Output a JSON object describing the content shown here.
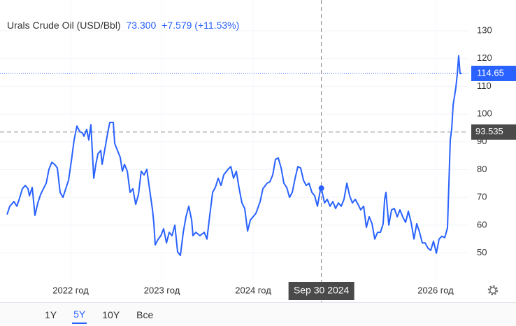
{
  "chart_data": {
    "type": "line",
    "header": {
      "name": "Urals Crude Oil (USD/Bbl)",
      "price": "73.300",
      "change": "+7.579 (+11.53%)"
    },
    "x": [
      2021.303,
      2021.333,
      2021.379,
      2021.41,
      2021.441,
      2021.471,
      2021.502,
      2021.533,
      2021.548,
      2021.579,
      2021.609,
      2021.64,
      2021.67,
      2021.701,
      2021.732,
      2021.762,
      2021.793,
      2021.824,
      2021.854,
      2021.885,
      2021.916,
      2021.946,
      2021.977,
      2022.008,
      2022.038,
      2022.069,
      2022.1,
      2022.13,
      2022.146,
      2022.176,
      2022.199,
      2022.222,
      2022.253,
      2022.276,
      2022.299,
      2022.33,
      2022.345,
      2022.375,
      2022.406,
      2022.429,
      2022.467,
      2022.483,
      2022.513,
      2022.544,
      2022.567,
      2022.59,
      2022.621,
      2022.651,
      2022.682,
      2022.713,
      2022.743,
      2022.774,
      2022.805,
      2022.835,
      2022.866,
      2022.897,
      2022.912,
      2022.927,
      2022.958,
      2022.989,
      2023.019,
      2023.05,
      2023.08,
      2023.111,
      2023.142,
      2023.172,
      2023.203,
      2023.234,
      2023.264,
      2023.295,
      2023.326,
      2023.341,
      2023.372,
      2023.418,
      2023.464,
      2023.494,
      2023.525,
      2023.556,
      2023.586,
      2023.617,
      2023.648,
      2023.678,
      2023.724,
      2023.755,
      2023.785,
      2023.816,
      2023.847,
      2023.877,
      2023.908,
      2023.939,
      2023.969,
      2024.0,
      2024.031,
      2024.077,
      2024.107,
      2024.153,
      2024.184,
      2024.215,
      2024.245,
      2024.276,
      2024.307,
      2024.337,
      2024.368,
      2024.399,
      2024.429,
      2024.46,
      2024.49,
      2024.521,
      2024.552,
      2024.582,
      2024.613,
      2024.644,
      2024.674,
      2024.705,
      2024.736,
      2024.748,
      2024.782,
      2024.812,
      2024.843,
      2024.874,
      2024.904,
      2024.935,
      2024.966,
      2024.996,
      2025.027,
      2025.058,
      2025.088,
      2025.119,
      2025.149,
      2025.18,
      2025.211,
      2025.241,
      2025.272,
      2025.303,
      2025.333,
      2025.364,
      2025.395,
      2025.425,
      2025.441,
      2025.456,
      2025.487,
      2025.517,
      2025.548,
      2025.579,
      2025.609,
      2025.64,
      2025.671,
      2025.701,
      2025.732,
      2025.763,
      2025.793,
      2025.824,
      2025.854,
      2025.885,
      2025.916,
      2025.946,
      2025.977,
      2026.008,
      2026.038,
      2026.069,
      2026.1,
      2026.13,
      2026.146,
      2026.161,
      2026.176,
      2026.192,
      2026.207,
      2026.222,
      2026.238,
      2026.253,
      2026.268,
      2026.284
    ],
    "values": [
      63.8,
      66.8,
      68.5,
      66.8,
      69.8,
      73.1,
      74.3,
      73.1,
      70.6,
      73.6,
      63.5,
      68,
      71,
      73.1,
      75.1,
      80.1,
      82.6,
      81.9,
      80.6,
      71.8,
      70,
      73.1,
      76.1,
      83.2,
      90.7,
      95.7,
      93.7,
      93.2,
      92,
      94.5,
      90.7,
      96.2,
      76.9,
      81.9,
      85.7,
      86.9,
      81.9,
      87.4,
      93.2,
      97,
      97,
      89.4,
      86.9,
      84.4,
      79.4,
      81.9,
      79.4,
      71.8,
      73.1,
      67.5,
      71,
      79.4,
      78.1,
      80.1,
      72.6,
      65.5,
      60.5,
      52.9,
      54.9,
      56.2,
      58.7,
      53.6,
      57.4,
      56.2,
      60,
      50.4,
      49.1,
      57.4,
      63,
      66.8,
      61.8,
      56.2,
      57.4,
      56.2,
      57.4,
      55,
      63.5,
      71.8,
      73.6,
      76.9,
      74.3,
      78.1,
      80.1,
      81.1,
      76.9,
      79.4,
      73.1,
      68,
      66,
      57.9,
      61.8,
      63,
      64.3,
      68.5,
      73.1,
      75.1,
      75.6,
      78.1,
      83.7,
      84.2,
      80.6,
      75.1,
      73.6,
      70,
      71.8,
      76.9,
      81.1,
      80.6,
      76.1,
      74.3,
      75.1,
      71.8,
      70.6,
      66.8,
      72.6,
      73.3,
      68,
      69.3,
      66.8,
      68.5,
      66,
      68,
      66.8,
      69.3,
      75.1,
      70.6,
      68,
      69.3,
      67.5,
      65.5,
      66.8,
      59.2,
      63,
      60.5,
      55,
      57.4,
      57.4,
      60.5,
      69.3,
      71.8,
      60,
      65.5,
      66,
      63,
      65.5,
      63,
      61,
      65,
      61,
      55,
      60.5,
      57.4,
      53.6,
      53.6,
      51.7,
      50.9,
      54.2,
      49.9,
      55,
      56,
      55.5,
      59,
      75.6,
      90.7,
      94.5,
      103.3,
      106.3,
      109.6,
      114.6,
      121,
      114.6,
      114.65
    ],
    "color": "#2962ff",
    "xlim": [
      2021.287,
      2026.36
    ],
    "xticks": [
      {
        "value": 2022,
        "label": "2022 год"
      },
      {
        "value": 2023,
        "label": "2023 год"
      },
      {
        "value": 2024,
        "label": "2024 год"
      },
      {
        "value": 2026,
        "label": "2026 год"
      }
    ],
    "ylim": [
      40.3,
      141.1
    ],
    "yticks": [
      50,
      60,
      70,
      80,
      90,
      100,
      110,
      120,
      130
    ],
    "grid": true,
    "last_value": 114.65,
    "crosshair": {
      "x": 2024.748,
      "x_label": "Sep 30 2024",
      "y": 93.535
    },
    "ranges": [
      "1Y",
      "5Y",
      "10Y",
      "Все"
    ],
    "selected_range": "5Y"
  }
}
